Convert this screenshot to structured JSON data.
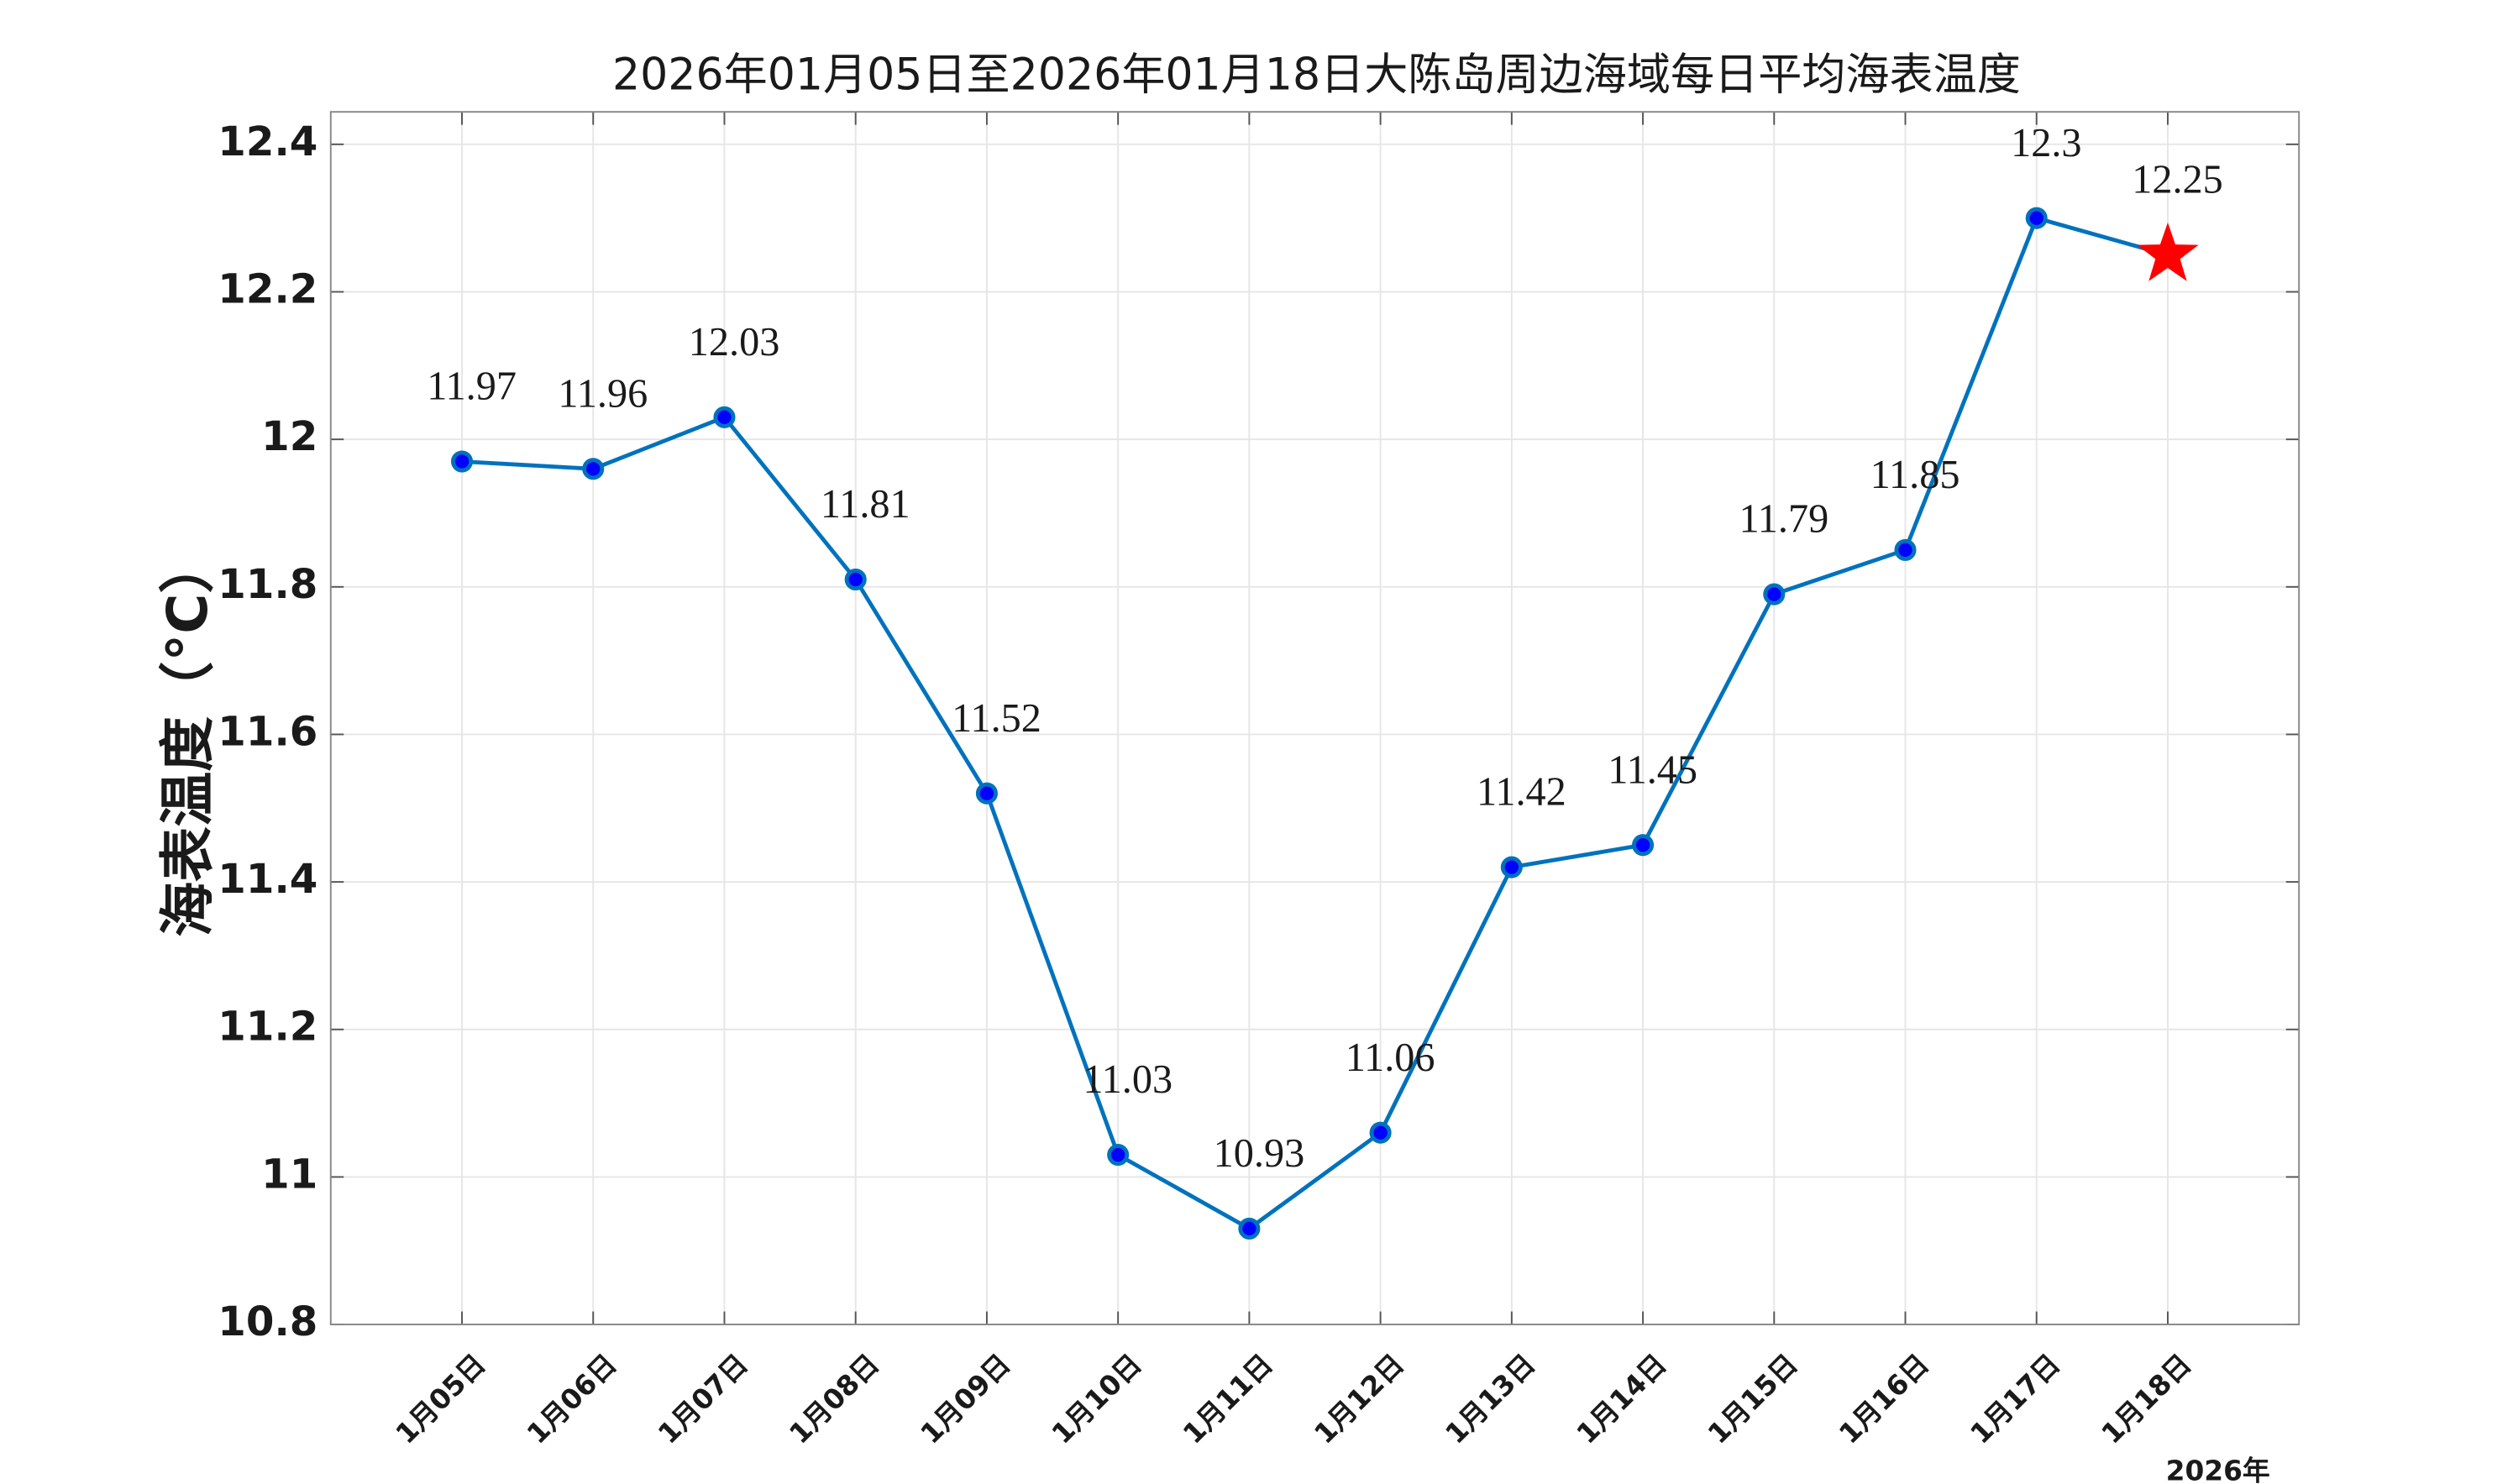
{
  "chart_data": {
    "type": "line",
    "title": "2026年01月05日至2026年01月18日大陈岛周边海域每日平均海表温度",
    "y_label": "海表温度（°C）",
    "x_note": "2026年",
    "categories": [
      "1月05日",
      "1月06日",
      "1月07日",
      "1月08日",
      "1月09日",
      "1月10日",
      "1月11日",
      "1月12日",
      "1月13日",
      "1月14日",
      "1月15日",
      "1月16日",
      "1月17日",
      "1月18日"
    ],
    "series": [
      {
        "color": "#0072bd",
        "marker_color": "#0000ff",
        "values": [
          11.97,
          11.96,
          12.03,
          11.81,
          11.52,
          11.03,
          10.93,
          11.06,
          11.42,
          11.45,
          11.79,
          11.85,
          12.3,
          12.25
        ]
      }
    ],
    "last_marker": "star",
    "last_marker_color": "#ff0000",
    "ylim": [
      10.8,
      12.444
    ],
    "yticks": [
      10.8,
      11,
      11.2,
      11.4,
      11.6,
      11.8,
      12,
      12.2,
      12.4
    ],
    "grid": true
  }
}
